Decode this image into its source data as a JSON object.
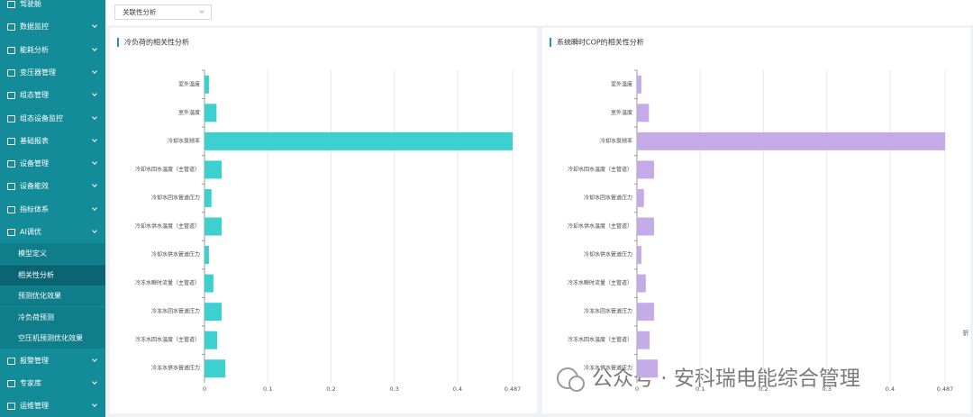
{
  "sidebar": {
    "items": [
      "驾驶舱",
      "数据监控",
      "能耗分析",
      "变压器管理",
      "组态管理",
      "组态设备监控",
      "基础报表",
      "设备管理",
      "设备能效",
      "指标体系",
      "AI调优"
    ],
    "ai_children": [
      "模型定义",
      "相关性分析",
      "预测优化效果",
      "冷负荷预测",
      "空压机预测优化效果"
    ],
    "items_after": [
      "报警管理",
      "专家库",
      "运维管理"
    ]
  },
  "dropdown": "关联性分析",
  "side_hint": "折",
  "watermark": "公众号 · 安科瑞电能综合管理",
  "chart_data": [
    {
      "type": "barh",
      "title": "冷负荷的相关性分析",
      "color": "#3ecfcf",
      "categories": [
        "室外温度",
        "室外温度",
        "冷却水泵频率",
        "冷却水回水温度（主管道）",
        "冷却水回水管道压力",
        "冷却水供水温度（主管道）",
        "冷却水供水管道压力",
        "冷冻水瞬时流量（主管道）",
        "冷冻水回水管道压力",
        "冷冻水回水温度（主管道）",
        "冷冻水供水管道压力"
      ],
      "values": [
        0.007,
        0.019,
        0.487,
        0.027,
        0.011,
        0.027,
        0.007,
        0.014,
        0.027,
        0.02,
        0.033
      ],
      "xlim": [
        0,
        0.487
      ],
      "xticks": [
        0,
        0.1,
        0.2,
        0.3,
        0.4,
        0.487
      ],
      "grid": true
    },
    {
      "type": "barh",
      "title": "系统瞬时COP的相关性分析",
      "color": "#c4abe8",
      "categories": [
        "室外温度",
        "室外温度",
        "冷却水泵频率",
        "冷却水回水温度（主管道）",
        "冷却水回水管道压力",
        "冷却水供水温度（主管道）",
        "冷却水供水管道压力",
        "冷冻水瞬时流量（主管道）",
        "冷冻水回水管道压力",
        "冷冻水回水温度（主管道）",
        "冷冻水供水管道压力"
      ],
      "values": [
        0.007,
        0.019,
        0.487,
        0.027,
        0.011,
        0.027,
        0.007,
        0.014,
        0.027,
        0.02,
        0.033
      ],
      "xlim": [
        0,
        0.487
      ],
      "xticks": [
        0,
        0.1,
        0.2,
        0.3,
        0.4,
        0.487
      ],
      "grid": true
    }
  ]
}
